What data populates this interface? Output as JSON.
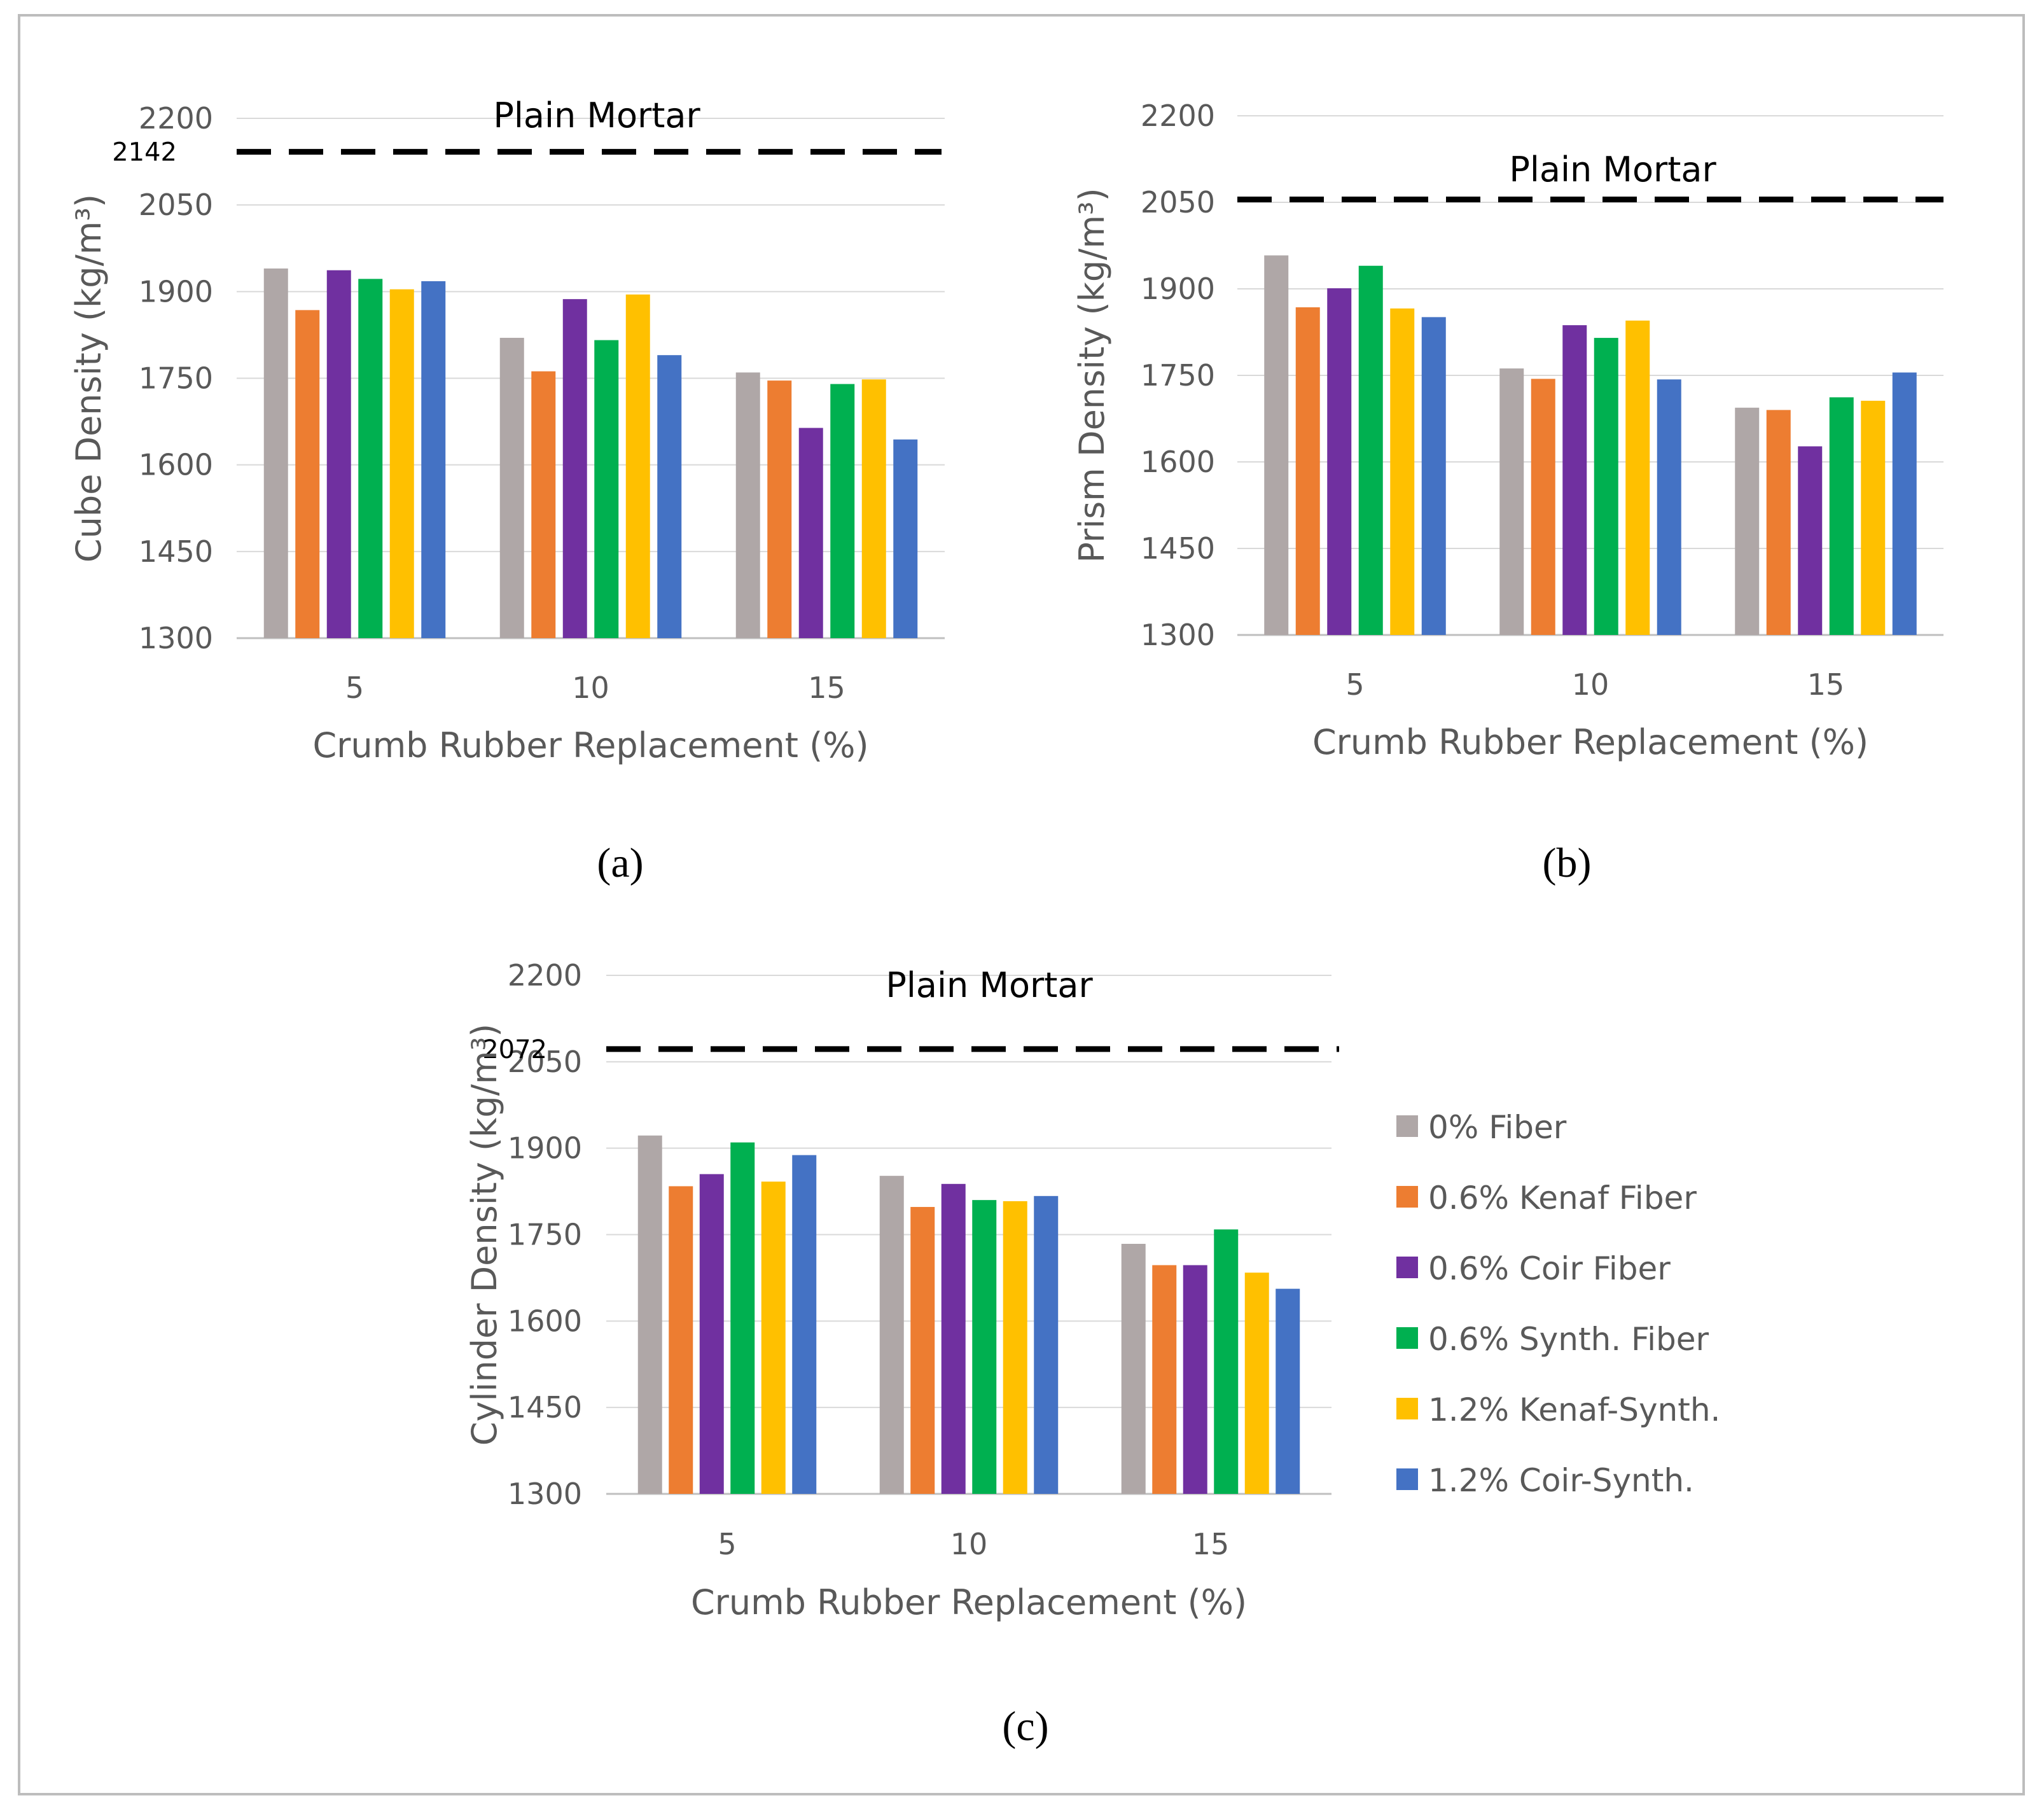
{
  "figure": {
    "legend": [
      {
        "name": "0% Fiber",
        "color": "#afa7a7"
      },
      {
        "name": "0.6% Kenaf Fiber",
        "color": "#ed7d31"
      },
      {
        "name": "0.6% Coir Fiber",
        "color": "#7030a0"
      },
      {
        "name": "0.6% Synth. Fiber",
        "color": "#00b050"
      },
      {
        "name": "1.2% Kenaf-Synth.",
        "color": "#ffc000"
      },
      {
        "name": "1.2% Coir-Synth.",
        "color": "#4472c4"
      }
    ]
  },
  "chart_data": [
    {
      "id": "a",
      "type": "bar",
      "panel_label": "(a)",
      "title": "",
      "xlabel": "Crumb Rubber Replacement (%)",
      "ylabel": "Cube Density (kg/m³)",
      "ylim": [
        1300,
        2200
      ],
      "yticks": [
        1300,
        1450,
        1600,
        1750,
        1900,
        2050,
        2200
      ],
      "categories": [
        "5",
        "10",
        "15"
      ],
      "reference": {
        "label": "Plain Mortar",
        "value": 2142,
        "value_label": "2142"
      },
      "series": [
        {
          "name": "0% Fiber",
          "values": [
            1940,
            1820,
            1760
          ]
        },
        {
          "name": "0.6% Kenaf Fiber",
          "values": [
            1868,
            1762,
            1746
          ]
        },
        {
          "name": "0.6% Coir Fiber",
          "values": [
            1937,
            1887,
            1664
          ]
        },
        {
          "name": "0.6% Synth. Fiber",
          "values": [
            1922,
            1816,
            1740
          ]
        },
        {
          "name": "1.2% Kenaf-Synth.",
          "values": [
            1904,
            1895,
            1748
          ]
        },
        {
          "name": "1.2% Coir-Synth.",
          "values": [
            1918,
            1790,
            1644
          ]
        }
      ]
    },
    {
      "id": "b",
      "type": "bar",
      "panel_label": "(b)",
      "title": "",
      "xlabel": "Crumb Rubber Replacement (%)",
      "ylabel": "Prism Density (kg/m³)",
      "ylim": [
        1300,
        2200
      ],
      "yticks": [
        1300,
        1450,
        1600,
        1750,
        1900,
        2050,
        2200
      ],
      "categories": [
        "5",
        "10",
        "15"
      ],
      "reference": {
        "label": "Plain Mortar",
        "value": 2055,
        "value_label": ""
      },
      "series": [
        {
          "name": "0% Fiber",
          "values": [
            1958,
            1762,
            1694
          ]
        },
        {
          "name": "0.6% Kenaf Fiber",
          "values": [
            1868,
            1744,
            1690
          ]
        },
        {
          "name": "0.6% Coir Fiber",
          "values": [
            1901,
            1837,
            1627
          ]
        },
        {
          "name": "0.6% Synth. Fiber",
          "values": [
            1940,
            1815,
            1712
          ]
        },
        {
          "name": "1.2% Kenaf-Synth.",
          "values": [
            1866,
            1845,
            1706
          ]
        },
        {
          "name": "1.2% Coir-Synth.",
          "values": [
            1851,
            1743,
            1755
          ]
        }
      ]
    },
    {
      "id": "c",
      "type": "bar",
      "panel_label": "(c)",
      "title": "",
      "xlabel": "Crumb Rubber Replacement (%)",
      "ylabel": "Cylinder Density (kg/m³)",
      "ylim": [
        1300,
        2200
      ],
      "yticks": [
        1300,
        1450,
        1600,
        1750,
        1900,
        2050,
        2200
      ],
      "categories": [
        "5",
        "10",
        "15"
      ],
      "reference": {
        "label": "Plain Mortar",
        "value": 2072,
        "value_label": "2072"
      },
      "series": [
        {
          "name": "0% Fiber",
          "values": [
            1922,
            1852,
            1734
          ]
        },
        {
          "name": "0.6% Kenaf Fiber",
          "values": [
            1834,
            1798,
            1697
          ]
        },
        {
          "name": "0.6% Coir Fiber",
          "values": [
            1855,
            1838,
            1697
          ]
        },
        {
          "name": "0.6% Synth. Fiber",
          "values": [
            1910,
            1810,
            1759
          ]
        },
        {
          "name": "1.2% Kenaf-Synth.",
          "values": [
            1842,
            1808,
            1684
          ]
        },
        {
          "name": "1.2% Coir-Synth.",
          "values": [
            1888,
            1817,
            1656
          ]
        }
      ]
    }
  ]
}
